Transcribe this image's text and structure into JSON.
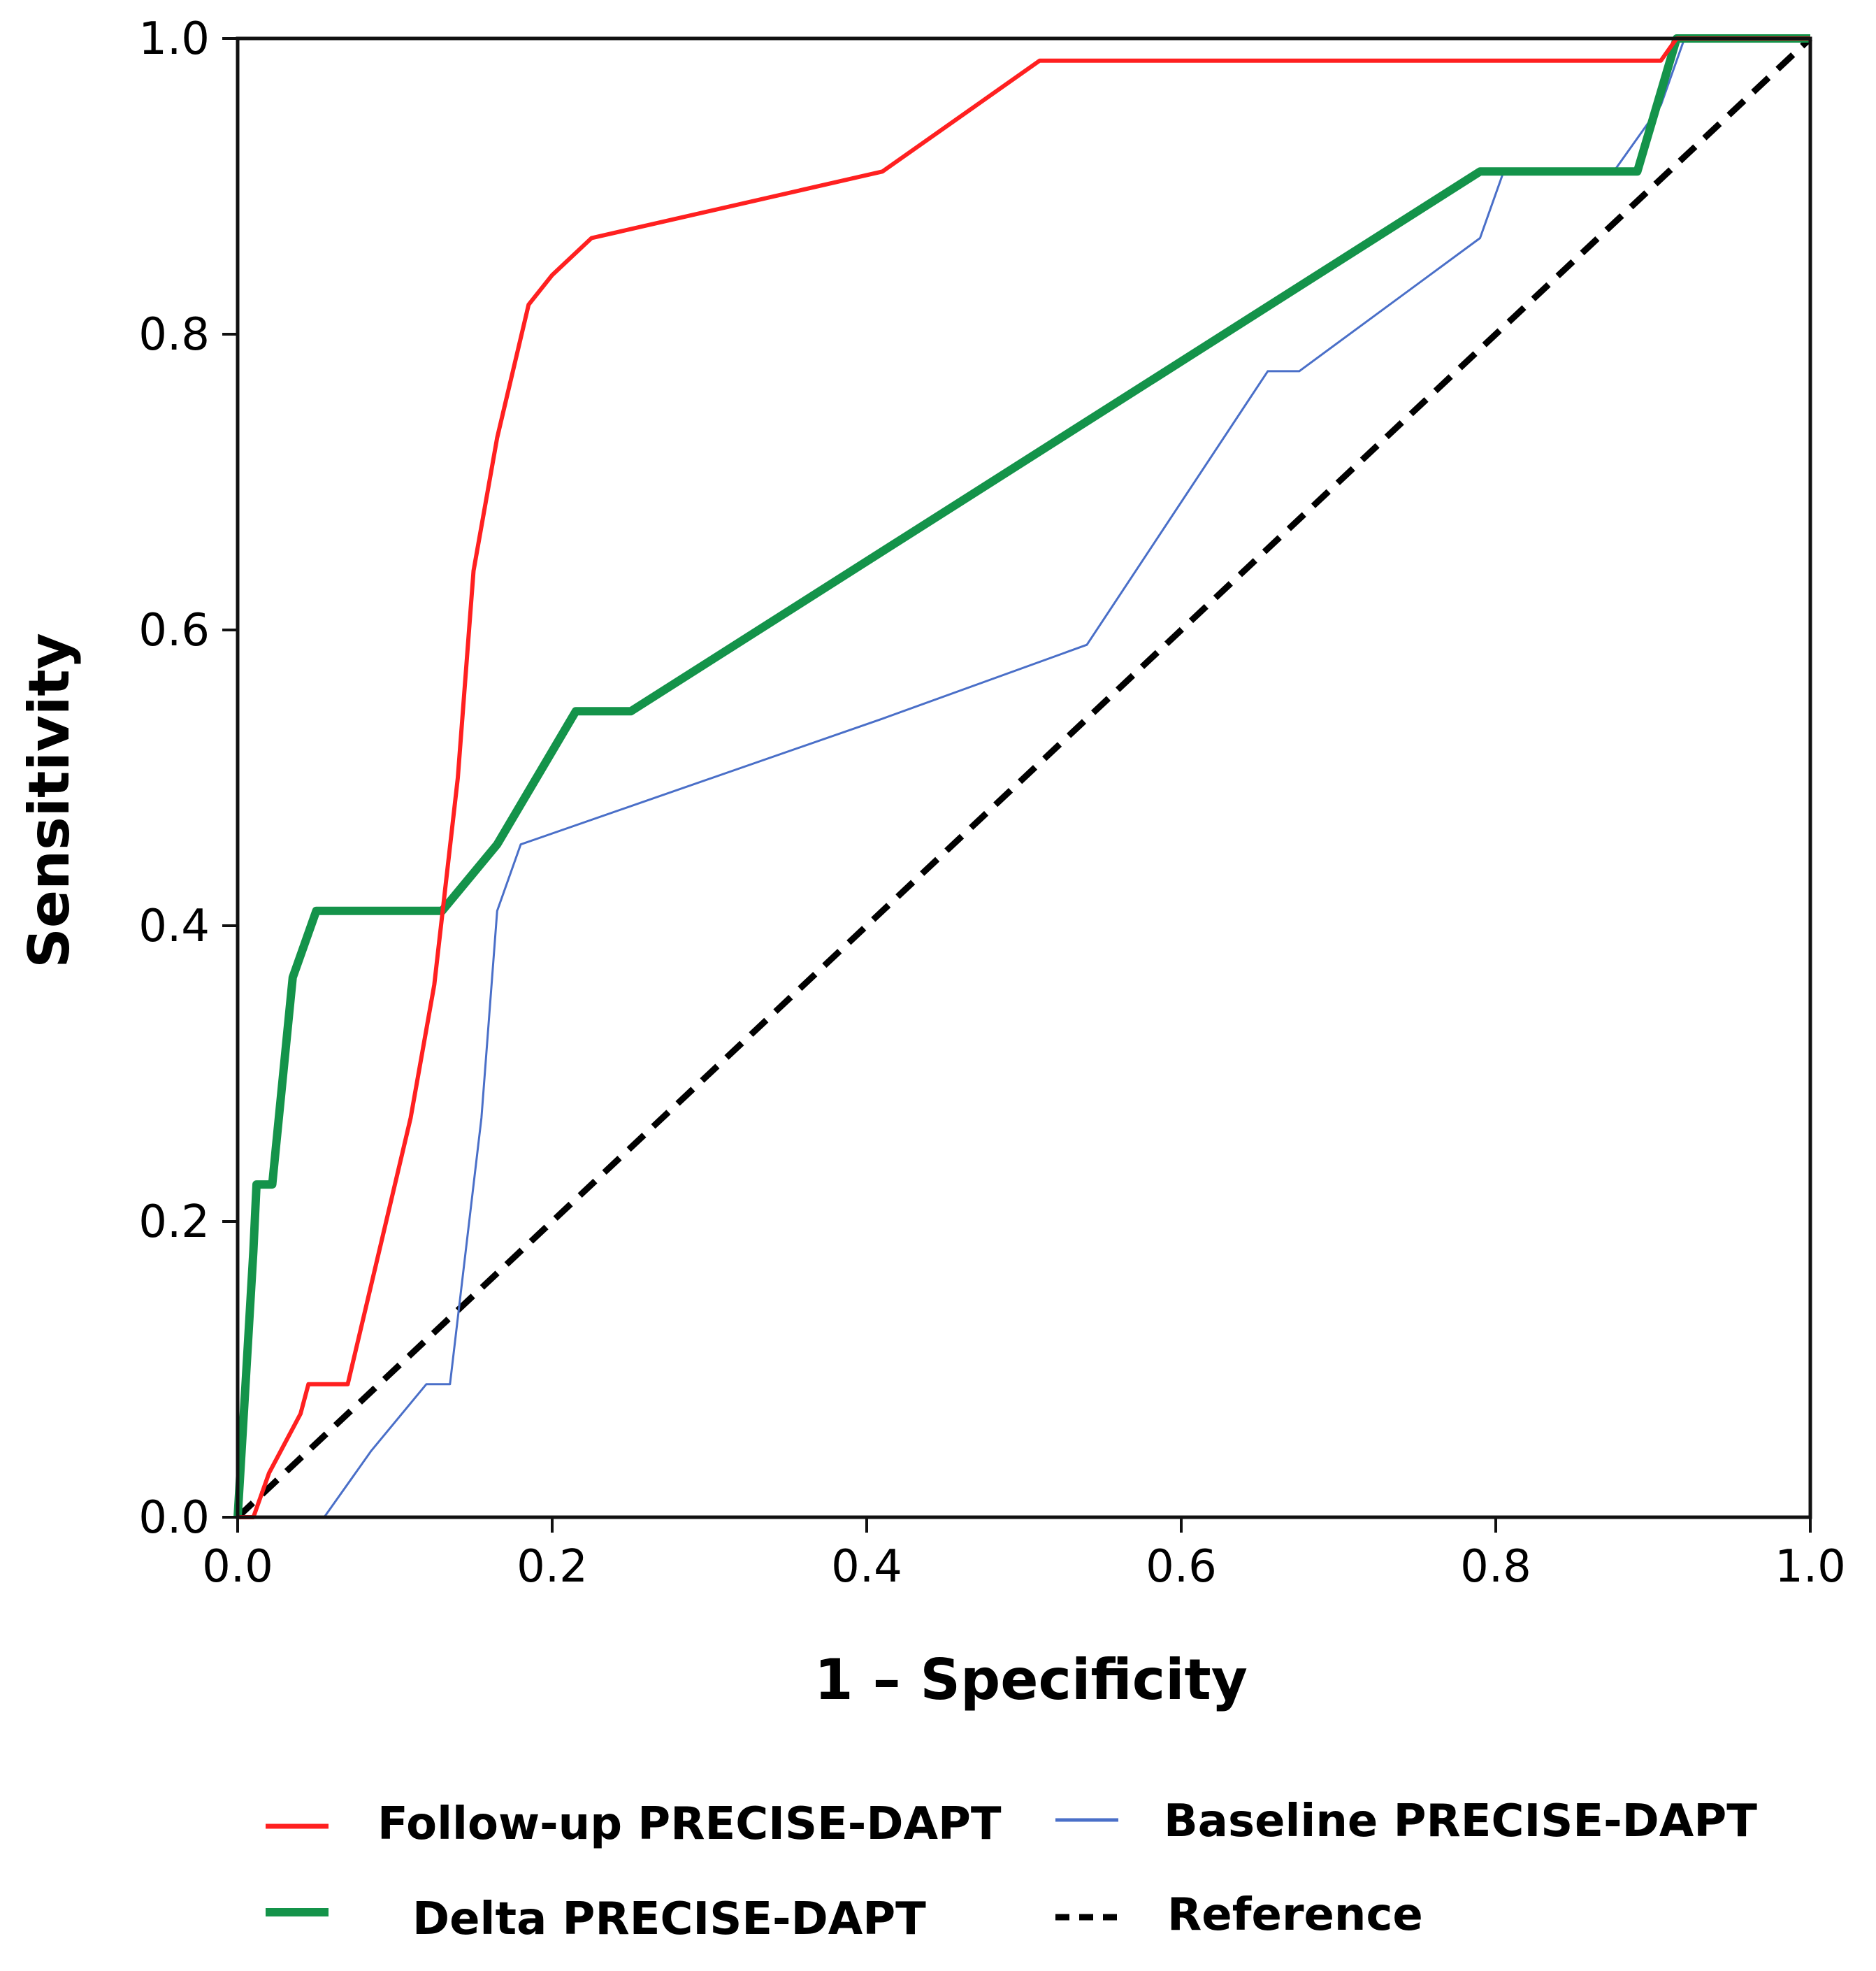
{
  "chart_data": {
    "type": "line",
    "title": "",
    "xlabel": "1 – Specificity",
    "ylabel": "Sensitivity",
    "xlim": [
      0,
      1
    ],
    "ylim": [
      0,
      1
    ],
    "x_ticks": [
      "0.0",
      "0.2",
      "0.4",
      "0.6",
      "0.8",
      "1.0"
    ],
    "y_ticks": [
      "0.0",
      "0.2",
      "0.4",
      "0.6",
      "0.8",
      "1.0"
    ],
    "grid": false,
    "legend_position": "bottom",
    "series": [
      {
        "name": "Follow-up PRECISE-DAPT",
        "color": "#ff2020",
        "style": "thin",
        "points": [
          [
            0.0,
            0.0
          ],
          [
            0.01,
            0.0
          ],
          [
            0.02,
            0.03
          ],
          [
            0.03,
            0.05
          ],
          [
            0.04,
            0.07
          ],
          [
            0.045,
            0.09
          ],
          [
            0.07,
            0.09
          ],
          [
            0.09,
            0.18
          ],
          [
            0.11,
            0.27
          ],
          [
            0.125,
            0.36
          ],
          [
            0.14,
            0.5
          ],
          [
            0.15,
            0.64
          ],
          [
            0.165,
            0.73
          ],
          [
            0.185,
            0.82
          ],
          [
            0.2,
            0.84
          ],
          [
            0.225,
            0.865
          ],
          [
            0.41,
            0.91
          ],
          [
            0.51,
            0.985
          ],
          [
            0.905,
            0.985
          ],
          [
            0.915,
            1.0
          ],
          [
            1.0,
            1.0
          ]
        ]
      },
      {
        "name": "Baseline PRECISE-DAPT",
        "color": "#4a6fc8",
        "style": "thin",
        "points": [
          [
            0.0,
            0.0
          ],
          [
            0.055,
            0.0
          ],
          [
            0.085,
            0.045
          ],
          [
            0.12,
            0.09
          ],
          [
            0.135,
            0.09
          ],
          [
            0.145,
            0.18
          ],
          [
            0.155,
            0.27
          ],
          [
            0.165,
            0.41
          ],
          [
            0.18,
            0.455
          ],
          [
            0.41,
            0.54
          ],
          [
            0.54,
            0.59
          ],
          [
            0.655,
            0.775
          ],
          [
            0.675,
            0.775
          ],
          [
            0.79,
            0.865
          ],
          [
            0.805,
            0.91
          ],
          [
            0.875,
            0.91
          ],
          [
            0.905,
            0.955
          ],
          [
            0.92,
            1.0
          ],
          [
            1.0,
            1.0
          ]
        ]
      },
      {
        "name": "Delta PRECISE-DAPT",
        "color": "#14934a",
        "style": "thick",
        "points": [
          [
            0.0,
            0.0
          ],
          [
            0.005,
            0.09
          ],
          [
            0.01,
            0.18
          ],
          [
            0.012,
            0.225
          ],
          [
            0.022,
            0.225
          ],
          [
            0.035,
            0.365
          ],
          [
            0.05,
            0.41
          ],
          [
            0.13,
            0.41
          ],
          [
            0.165,
            0.455
          ],
          [
            0.215,
            0.545
          ],
          [
            0.25,
            0.545
          ],
          [
            0.79,
            0.91
          ],
          [
            0.89,
            0.91
          ],
          [
            0.915,
            1.0
          ],
          [
            1.0,
            1.0
          ]
        ]
      },
      {
        "name": "Reference",
        "color": "#000000",
        "style": "dashed",
        "points": [
          [
            0.0,
            0.0
          ],
          [
            1.0,
            1.0
          ]
        ]
      }
    ]
  }
}
